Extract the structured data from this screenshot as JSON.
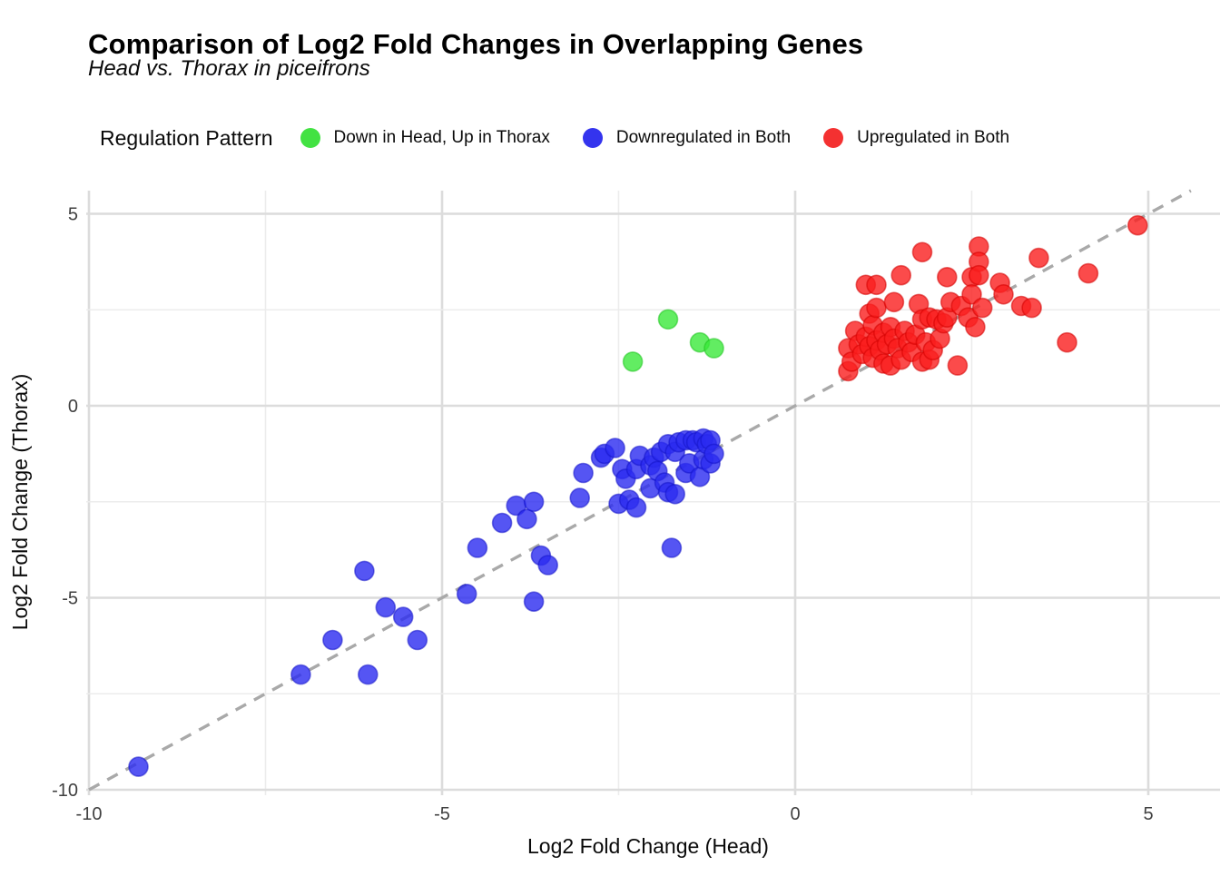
{
  "header": {
    "title": "Comparison of Log2 Fold Changes in Overlapping Genes",
    "subtitle": "Head vs. Thorax in piceifrons"
  },
  "legend": {
    "title": "Regulation Pattern",
    "items": [
      {
        "label": "Down in Head, Up in Thorax",
        "color": "#42e242"
      },
      {
        "label": "Downregulated in Both",
        "color": "#3434ee"
      },
      {
        "label": "Upregulated in Both",
        "color": "#f43131"
      }
    ]
  },
  "chart_data": {
    "type": "scatter",
    "title": "Comparison of Log2 Fold Changes in Overlapping Genes",
    "subtitle": "Head vs. Thorax in piceifrons",
    "xlabel": "Log2 Fold Change (Head)",
    "ylabel": "Log2 Fold Change (Thorax)",
    "xlim": [
      -10,
      6.0
    ],
    "ylim": [
      -10.1,
      5.6
    ],
    "x_ticks": [
      -10,
      -5,
      0,
      5
    ],
    "y_ticks": [
      5,
      0,
      -5,
      -10
    ],
    "minor_step": 2.5,
    "grid": true,
    "legend_position": "top",
    "identity_line": {
      "equation": "y = x",
      "style": "dashed",
      "color": "#a9a9a9"
    },
    "colors": {
      "green_fill": "#3be83b",
      "green_stroke": "#1fc41f",
      "blue_fill": "#2b2bf0",
      "blue_stroke": "#1414c8",
      "red_fill": "#fa1e1e",
      "red_stroke": "#d40000",
      "grid_major": "#dcdcdc",
      "grid_minor": "#ececec"
    },
    "series": [
      {
        "name": "Down in Head, Up in Thorax",
        "points": [
          [
            -2.3,
            1.15
          ],
          [
            -1.8,
            2.25
          ],
          [
            -1.35,
            1.65
          ],
          [
            -1.15,
            1.5
          ]
        ]
      },
      {
        "name": "Downregulated in Both",
        "points": [
          [
            -9.3,
            -9.4
          ],
          [
            -7.0,
            -7.0
          ],
          [
            -6.55,
            -6.1
          ],
          [
            -6.1,
            -4.3
          ],
          [
            -6.05,
            -7.0
          ],
          [
            -5.8,
            -5.25
          ],
          [
            -5.55,
            -5.5
          ],
          [
            -5.35,
            -6.1
          ],
          [
            -4.65,
            -4.9
          ],
          [
            -4.5,
            -3.7
          ],
          [
            -4.15,
            -3.05
          ],
          [
            -3.95,
            -2.6
          ],
          [
            -3.8,
            -2.95
          ],
          [
            -3.7,
            -2.5
          ],
          [
            -3.7,
            -5.1
          ],
          [
            -3.6,
            -3.9
          ],
          [
            -3.5,
            -4.15
          ],
          [
            -3.05,
            -2.4
          ],
          [
            -3.0,
            -1.75
          ],
          [
            -2.75,
            -1.35
          ],
          [
            -2.7,
            -1.25
          ],
          [
            -2.55,
            -1.1
          ],
          [
            -2.5,
            -2.55
          ],
          [
            -2.45,
            -1.65
          ],
          [
            -2.4,
            -1.9
          ],
          [
            -2.35,
            -2.45
          ],
          [
            -2.25,
            -2.65
          ],
          [
            -2.25,
            -1.65
          ],
          [
            -2.2,
            -1.3
          ],
          [
            -2.05,
            -2.15
          ],
          [
            -2.05,
            -1.55
          ],
          [
            -2.0,
            -1.35
          ],
          [
            -1.95,
            -1.7
          ],
          [
            -1.9,
            -1.2
          ],
          [
            -1.85,
            -2.0
          ],
          [
            -1.8,
            -2.25
          ],
          [
            -1.8,
            -1.0
          ],
          [
            -1.75,
            -3.7
          ],
          [
            -1.7,
            -2.3
          ],
          [
            -1.7,
            -1.2
          ],
          [
            -1.65,
            -0.95
          ],
          [
            -1.55,
            -1.75
          ],
          [
            -1.55,
            -0.9
          ],
          [
            -1.5,
            -1.5
          ],
          [
            -1.45,
            -0.9
          ],
          [
            -1.4,
            -0.95
          ],
          [
            -1.35,
            -1.85
          ],
          [
            -1.3,
            -1.4
          ],
          [
            -1.3,
            -0.85
          ],
          [
            -1.25,
            -1.0
          ],
          [
            -1.2,
            -1.5
          ],
          [
            -1.2,
            -0.9
          ],
          [
            -1.15,
            -1.25
          ]
        ]
      },
      {
        "name": "Upregulated in Both",
        "points": [
          [
            0.75,
            1.5
          ],
          [
            0.75,
            0.9
          ],
          [
            0.8,
            1.15
          ],
          [
            0.85,
            1.95
          ],
          [
            0.9,
            1.6
          ],
          [
            0.95,
            1.35
          ],
          [
            1.0,
            3.15
          ],
          [
            1.0,
            1.8
          ],
          [
            1.05,
            2.4
          ],
          [
            1.05,
            1.55
          ],
          [
            1.1,
            2.1
          ],
          [
            1.1,
            1.25
          ],
          [
            1.15,
            3.15
          ],
          [
            1.15,
            2.55
          ],
          [
            1.15,
            1.7
          ],
          [
            1.2,
            1.45
          ],
          [
            1.25,
            1.9
          ],
          [
            1.25,
            1.1
          ],
          [
            1.3,
            1.6
          ],
          [
            1.35,
            2.05
          ],
          [
            1.35,
            1.05
          ],
          [
            1.4,
            2.7
          ],
          [
            1.4,
            1.75
          ],
          [
            1.45,
            1.5
          ],
          [
            1.5,
            3.4
          ],
          [
            1.5,
            1.2
          ],
          [
            1.55,
            1.95
          ],
          [
            1.6,
            1.65
          ],
          [
            1.65,
            1.4
          ],
          [
            1.7,
            1.85
          ],
          [
            1.75,
            2.65
          ],
          [
            1.8,
            4.0
          ],
          [
            1.8,
            2.25
          ],
          [
            1.8,
            1.15
          ],
          [
            1.85,
            1.65
          ],
          [
            1.9,
            2.3
          ],
          [
            1.9,
            1.2
          ],
          [
            1.95,
            1.45
          ],
          [
            2.0,
            2.25
          ],
          [
            2.05,
            1.75
          ],
          [
            2.1,
            2.15
          ],
          [
            2.15,
            3.35
          ],
          [
            2.15,
            2.3
          ],
          [
            2.2,
            2.7
          ],
          [
            2.3,
            1.05
          ],
          [
            2.35,
            2.6
          ],
          [
            2.45,
            2.3
          ],
          [
            2.5,
            3.35
          ],
          [
            2.5,
            2.9
          ],
          [
            2.55,
            2.05
          ],
          [
            2.6,
            4.15
          ],
          [
            2.6,
            3.75
          ],
          [
            2.6,
            3.4
          ],
          [
            2.65,
            2.55
          ],
          [
            2.9,
            3.2
          ],
          [
            2.95,
            2.9
          ],
          [
            3.2,
            2.6
          ],
          [
            3.35,
            2.55
          ],
          [
            3.45,
            3.85
          ],
          [
            3.85,
            1.65
          ],
          [
            4.15,
            3.45
          ],
          [
            4.85,
            4.7
          ]
        ]
      }
    ]
  }
}
